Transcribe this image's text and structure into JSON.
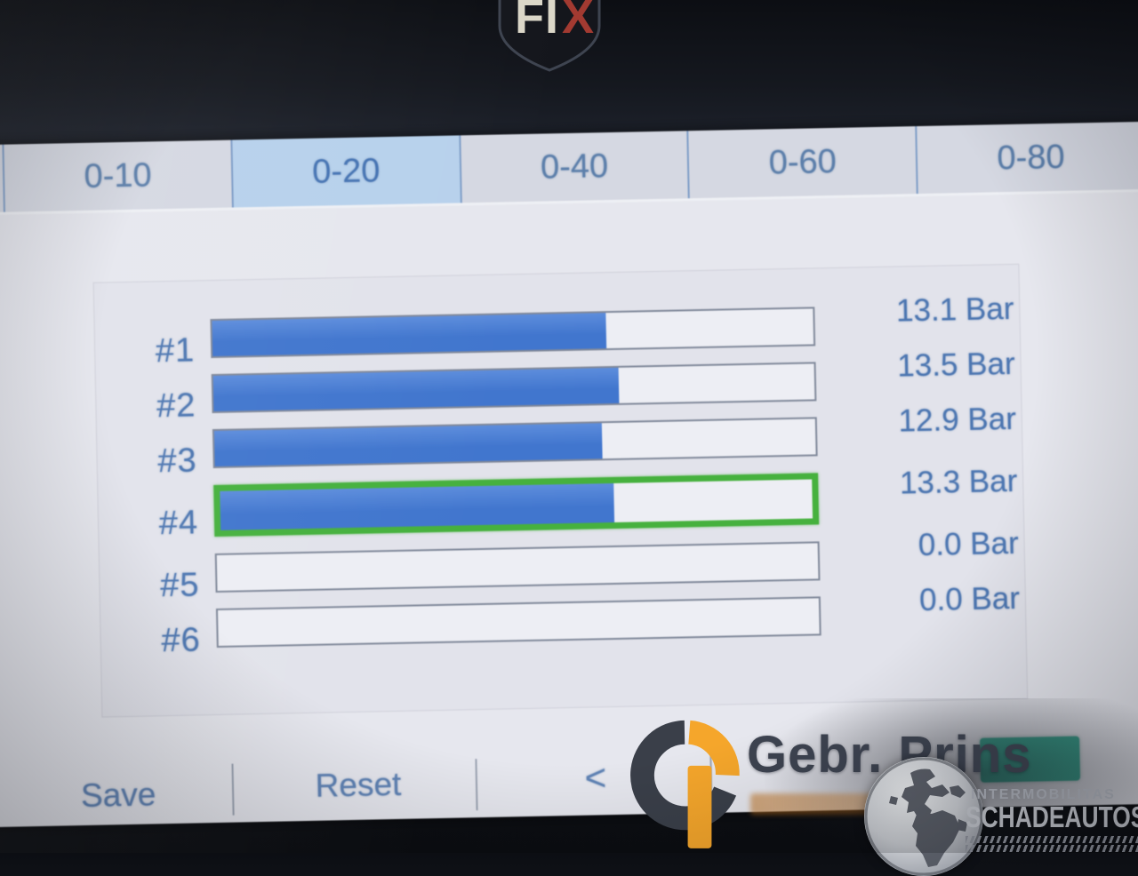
{
  "bezel": {
    "logo_text_primary": "FI",
    "logo_text_accent": "X"
  },
  "tabs": {
    "items": [
      {
        "label": "0-10",
        "selected": false
      },
      {
        "label": "0-20",
        "selected": true
      },
      {
        "label": "0-40",
        "selected": false
      },
      {
        "label": "0-60",
        "selected": false
      },
      {
        "label": "0-80",
        "selected": false
      }
    ]
  },
  "chart_data": {
    "type": "bar",
    "orientation": "horizontal",
    "categories": [
      "#1",
      "#2",
      "#3",
      "#4",
      "#5",
      "#6"
    ],
    "values": [
      13.1,
      13.5,
      12.9,
      13.3,
      0.0,
      0.0
    ],
    "value_labels": [
      "13.1 Bar",
      "13.5 Bar",
      "12.9 Bar",
      "13.3 Bar",
      "0.0 Bar",
      "0.0 Bar"
    ],
    "unit": "Bar",
    "xlim": [
      0,
      20
    ],
    "scale_tab": "0-20",
    "selected_category": "#4",
    "selected_index": 3,
    "grid": false,
    "legend": false
  },
  "bottom_bar": {
    "save_label": "Save",
    "reset_label": "Reset",
    "back_label": "<"
  },
  "watermark": {
    "company": "Gebr. Prins",
    "small_caption": "INTERMOBILITAS",
    "site": "SCHADEAUTOS.NL"
  },
  "colors": {
    "accent_text": "#4c77b4",
    "bar_fill": "#3f76d2",
    "bar_fill_highlight": "#5b8de0",
    "bar_selected_border": "#43b23a",
    "tab_selected_bg": "#b6d1ed",
    "teal_badge": "#2ba58c",
    "watermark_orange": "#f5a62b",
    "watermark_gray": "#3a3f49"
  }
}
